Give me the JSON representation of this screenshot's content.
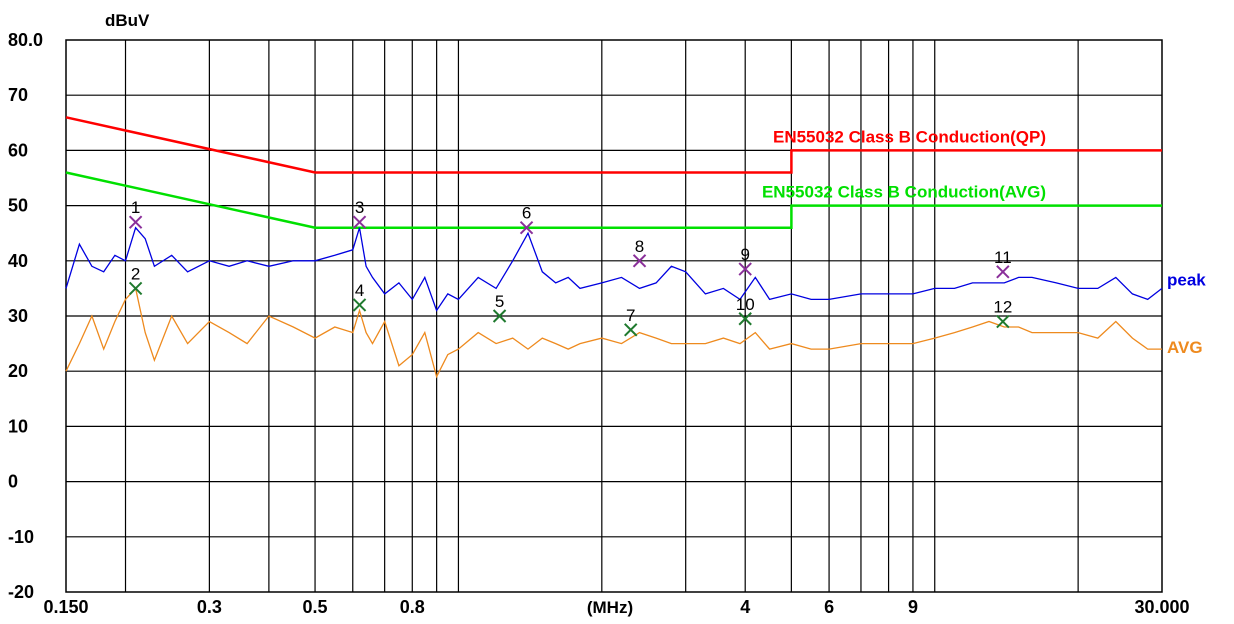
{
  "chart_data": {
    "type": "line",
    "ylabel": "dBuV",
    "xlabel": "(MHz)",
    "xscale": "log",
    "xlim": [
      0.15,
      30.0
    ],
    "ylim": [
      -20,
      80
    ],
    "grid": true,
    "y_ticks": [
      "80.0",
      "70",
      "60",
      "50",
      "40",
      "30",
      "20",
      "10",
      "0",
      "-10",
      "-20"
    ],
    "x_ticks": [
      {
        "value": 0.15,
        "label": "0.150"
      },
      {
        "value": 0.3,
        "label": "0.3"
      },
      {
        "value": 0.5,
        "label": "0.5"
      },
      {
        "value": 0.8,
        "label": "0.8"
      },
      {
        "value": 4,
        "label": "4"
      },
      {
        "value": 6,
        "label": "6"
      },
      {
        "value": 9,
        "label": "9"
      },
      {
        "value": 30.0,
        "label": "30.000"
      }
    ],
    "limits": [
      {
        "name": "EN55032 Class B Conduction(QP)",
        "color": "#ff0000",
        "x": [
          0.15,
          0.5,
          0.5,
          5,
          5,
          30
        ],
        "y": [
          66,
          56,
          56,
          56,
          60,
          60
        ]
      },
      {
        "name": "EN55032 Class B Conduction(AVG)",
        "color": "#00e000",
        "x": [
          0.15,
          0.5,
          0.5,
          5,
          5,
          30
        ],
        "y": [
          56,
          46,
          46,
          46,
          50,
          50
        ]
      }
    ],
    "series": [
      {
        "name": "peak",
        "color": "#0000e0",
        "x": [
          0.15,
          0.16,
          0.17,
          0.18,
          0.19,
          0.2,
          0.21,
          0.22,
          0.23,
          0.25,
          0.27,
          0.3,
          0.33,
          0.36,
          0.4,
          0.45,
          0.5,
          0.55,
          0.6,
          0.62,
          0.64,
          0.66,
          0.7,
          0.75,
          0.8,
          0.85,
          0.9,
          0.95,
          1.0,
          1.1,
          1.2,
          1.3,
          1.4,
          1.5,
          1.6,
          1.7,
          1.8,
          2.0,
          2.2,
          2.4,
          2.6,
          2.8,
          3.0,
          3.3,
          3.6,
          3.9,
          4.2,
          4.5,
          5.0,
          5.5,
          6.0,
          7.0,
          8.0,
          9.0,
          10.0,
          11.0,
          12.0,
          13.0,
          14.0,
          15.0,
          16.0,
          18.0,
          20.0,
          22.0,
          24.0,
          26.0,
          28.0,
          30.0
        ],
        "y": [
          35,
          43,
          39,
          38,
          41,
          40,
          46,
          44,
          39,
          41,
          38,
          40,
          39,
          40,
          39,
          40,
          40,
          41,
          42,
          46,
          39,
          37,
          34,
          36,
          33,
          37,
          31,
          34,
          33,
          37,
          35,
          40,
          45,
          38,
          36,
          37,
          35,
          36,
          37,
          35,
          36,
          39,
          38,
          34,
          35,
          33,
          37,
          33,
          34,
          33,
          33,
          34,
          34,
          34,
          35,
          35,
          36,
          36,
          36,
          37,
          37,
          36,
          35,
          35,
          37,
          34,
          33,
          35
        ]
      },
      {
        "name": "AVG",
        "color": "#ee8a1e",
        "x": [
          0.15,
          0.16,
          0.17,
          0.18,
          0.19,
          0.2,
          0.21,
          0.22,
          0.23,
          0.25,
          0.27,
          0.3,
          0.33,
          0.36,
          0.4,
          0.45,
          0.5,
          0.55,
          0.6,
          0.62,
          0.64,
          0.66,
          0.7,
          0.75,
          0.8,
          0.85,
          0.9,
          0.95,
          1.0,
          1.1,
          1.2,
          1.3,
          1.4,
          1.5,
          1.6,
          1.7,
          1.8,
          2.0,
          2.2,
          2.4,
          2.6,
          2.8,
          3.0,
          3.3,
          3.6,
          3.9,
          4.2,
          4.5,
          5.0,
          5.5,
          6.0,
          7.0,
          8.0,
          9.0,
          10.0,
          11.0,
          12.0,
          13.0,
          14.0,
          15.0,
          16.0,
          18.0,
          20.0,
          22.0,
          24.0,
          26.0,
          28.0,
          30.0
        ],
        "y": [
          20,
          25,
          30,
          24,
          29,
          33,
          35,
          27,
          22,
          30,
          25,
          29,
          27,
          25,
          30,
          28,
          26,
          28,
          27,
          31,
          27,
          25,
          29,
          21,
          23,
          27,
          19,
          23,
          24,
          27,
          25,
          26,
          24,
          26,
          25,
          24,
          25,
          26,
          25,
          27,
          26,
          25,
          25,
          25,
          26,
          25,
          27,
          24,
          25,
          24,
          24,
          25,
          25,
          25,
          26,
          27,
          28,
          29,
          28,
          28,
          27,
          27,
          27,
          26,
          29,
          26,
          24,
          24
        ]
      }
    ],
    "markers": [
      {
        "label": "1",
        "x": 0.21,
        "y": 47,
        "type": "peak"
      },
      {
        "label": "2",
        "x": 0.21,
        "y": 35,
        "type": "avg"
      },
      {
        "label": "3",
        "x": 0.62,
        "y": 47,
        "type": "peak"
      },
      {
        "label": "4",
        "x": 0.62,
        "y": 32,
        "type": "avg"
      },
      {
        "label": "5",
        "x": 1.22,
        "y": 30,
        "type": "avg"
      },
      {
        "label": "6",
        "x": 1.39,
        "y": 46,
        "type": "peak"
      },
      {
        "label": "7",
        "x": 2.3,
        "y": 27.5,
        "type": "avg"
      },
      {
        "label": "8",
        "x": 2.4,
        "y": 40,
        "type": "peak"
      },
      {
        "label": "9",
        "x": 4.0,
        "y": 38.5,
        "type": "peak"
      },
      {
        "label": "10",
        "x": 4.0,
        "y": 29.5,
        "type": "avg"
      },
      {
        "label": "11",
        "x": 13.9,
        "y": 38,
        "type": "peak"
      },
      {
        "label": "12",
        "x": 13.9,
        "y": 29,
        "type": "avg"
      }
    ],
    "colors": {
      "marker_peak": "#8a2f9a",
      "marker_avg": "#1f7a2e",
      "grid": "#000000"
    }
  }
}
